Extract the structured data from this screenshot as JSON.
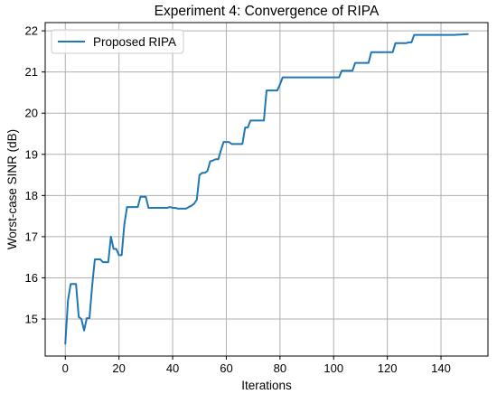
{
  "chart_data": {
    "type": "line",
    "title": "Experiment 4: Convergence of RIPA",
    "xlabel": "Iterations",
    "ylabel": "Worst-case SINR (dB)",
    "xlim": [
      -7.5,
      157.5
    ],
    "ylim": [
      14.1,
      22.2
    ],
    "xticks": [
      0,
      20,
      40,
      60,
      80,
      100,
      120,
      140
    ],
    "yticks": [
      15,
      16,
      17,
      18,
      19,
      20,
      21,
      22
    ],
    "grid": true,
    "legend_position": "upper-left",
    "colors": {
      "series": "#1f77b4",
      "grid": "#b0b0b0"
    },
    "series": [
      {
        "name": "Proposed RIPA",
        "x": [
          0,
          1,
          2,
          3,
          4,
          5,
          6,
          7,
          8,
          9,
          10,
          11,
          12,
          13,
          14,
          15,
          16,
          17,
          18,
          19,
          20,
          21,
          22,
          23,
          24,
          25,
          26,
          27,
          28,
          29,
          30,
          31,
          32,
          33,
          34,
          35,
          36,
          37,
          38,
          39,
          40,
          41,
          42,
          43,
          44,
          45,
          46,
          47,
          48,
          49,
          50,
          51,
          52,
          53,
          54,
          55,
          56,
          57,
          58,
          59,
          60,
          61,
          62,
          63,
          64,
          65,
          66,
          67,
          68,
          69,
          70,
          71,
          72,
          73,
          74,
          75,
          76,
          77,
          78,
          79,
          80,
          81,
          85,
          90,
          95,
          100,
          101,
          102,
          103,
          104,
          105,
          106,
          107,
          108,
          110,
          112,
          113,
          114,
          116,
          118,
          120,
          121,
          122,
          123,
          125,
          127,
          128,
          129,
          130,
          135,
          140,
          145,
          150
        ],
        "y": [
          14.4,
          15.45,
          15.85,
          15.85,
          15.85,
          15.05,
          15.0,
          14.72,
          15.02,
          15.02,
          15.8,
          16.45,
          16.45,
          16.45,
          16.38,
          16.38,
          16.38,
          17.0,
          16.7,
          16.7,
          16.55,
          16.55,
          17.3,
          17.72,
          17.72,
          17.72,
          17.72,
          17.72,
          17.97,
          17.97,
          17.97,
          17.7,
          17.7,
          17.7,
          17.7,
          17.7,
          17.7,
          17.7,
          17.7,
          17.72,
          17.7,
          17.7,
          17.68,
          17.68,
          17.68,
          17.68,
          17.72,
          17.75,
          17.8,
          17.9,
          18.5,
          18.55,
          18.55,
          18.6,
          18.83,
          18.85,
          18.88,
          18.88,
          19.1,
          19.3,
          19.3,
          19.3,
          19.25,
          19.25,
          19.25,
          19.25,
          19.25,
          19.65,
          19.65,
          19.82,
          19.82,
          19.82,
          19.82,
          19.82,
          19.82,
          20.55,
          20.55,
          20.55,
          20.55,
          20.55,
          20.7,
          20.87,
          20.87,
          20.87,
          20.87,
          20.87,
          20.87,
          20.87,
          21.03,
          21.03,
          21.03,
          21.03,
          21.03,
          21.22,
          21.22,
          21.22,
          21.22,
          21.48,
          21.48,
          21.48,
          21.48,
          21.48,
          21.48,
          21.7,
          21.7,
          21.7,
          21.72,
          21.72,
          21.9,
          21.9,
          21.9,
          21.9,
          21.92
        ]
      }
    ]
  }
}
